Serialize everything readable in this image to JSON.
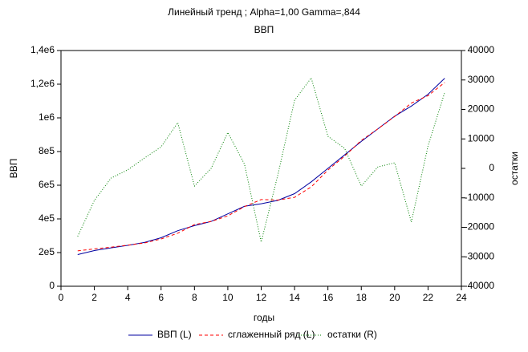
{
  "chart_data": {
    "type": "line",
    "title": "Линейный тренд ; Alpha=1,00 Gamma=,844",
    "subtitle": "ВВП",
    "x_label": "годы",
    "y_label": "ВВП",
    "y2_label": "остатки",
    "x": [
      1,
      2,
      3,
      4,
      5,
      6,
      7,
      8,
      9,
      10,
      11,
      12,
      13,
      14,
      15,
      16,
      17,
      18,
      19,
      20,
      21,
      22,
      23
    ],
    "series": [
      {
        "name": "ВВП (L)",
        "color": "#0000a0",
        "dash": "none",
        "axis": "y",
        "values": [
          188000,
          212000,
          228000,
          243000,
          260000,
          288000,
          330000,
          360000,
          385000,
          430000,
          475000,
          490000,
          510000,
          550000,
          620000,
          700000,
          780000,
          860000,
          935000,
          1010000,
          1070000,
          1140000,
          1235000
        ]
      },
      {
        "name": "сглаженный ряд (L)",
        "color": "#ff0000",
        "dash": "4,3",
        "axis": "y",
        "values": [
          210000,
          222000,
          232000,
          244000,
          257000,
          281000,
          315000,
          366000,
          385000,
          418000,
          473000,
          515000,
          512000,
          528000,
          590000,
          690000,
          773000,
          866000,
          935000,
          1008000,
          1088000,
          1132000,
          1210000
        ]
      },
      {
        "name": "остатки (R)",
        "color": "#008000",
        "dash": "1,2",
        "axis": "y2",
        "values": [
          -23100,
          -10900,
          -3300,
          -500,
          3500,
          7300,
          15500,
          -6000,
          0,
          12200,
          1400,
          -25000,
          -2200,
          23100,
          30700,
          10900,
          6800,
          -6000,
          500,
          1900,
          -18200,
          7600,
          25800
        ]
      }
    ],
    "xlim": [
      0,
      24
    ],
    "xticks": [
      0,
      2,
      4,
      6,
      8,
      10,
      12,
      14,
      16,
      18,
      20,
      22,
      24
    ],
    "ylim": [
      0,
      1400000
    ],
    "yticks": [
      0,
      {
        "value": 200000,
        "label": "2e5"
      },
      {
        "value": 400000,
        "label": "4e5"
      },
      {
        "value": 600000,
        "label": "6e5"
      },
      {
        "value": 800000,
        "label": "8e5"
      },
      {
        "value": 1000000,
        "label": "1e6"
      },
      {
        "value": 1200000,
        "label": "1,2e6"
      },
      {
        "value": 1400000,
        "label": "1,4e6"
      }
    ],
    "y2lim": [
      -40000,
      40000
    ],
    "y2ticks": [
      -40000,
      -30000,
      -20000,
      -10000,
      0,
      10000,
      20000,
      30000,
      40000
    ],
    "grid": false,
    "legend": "bottom"
  }
}
